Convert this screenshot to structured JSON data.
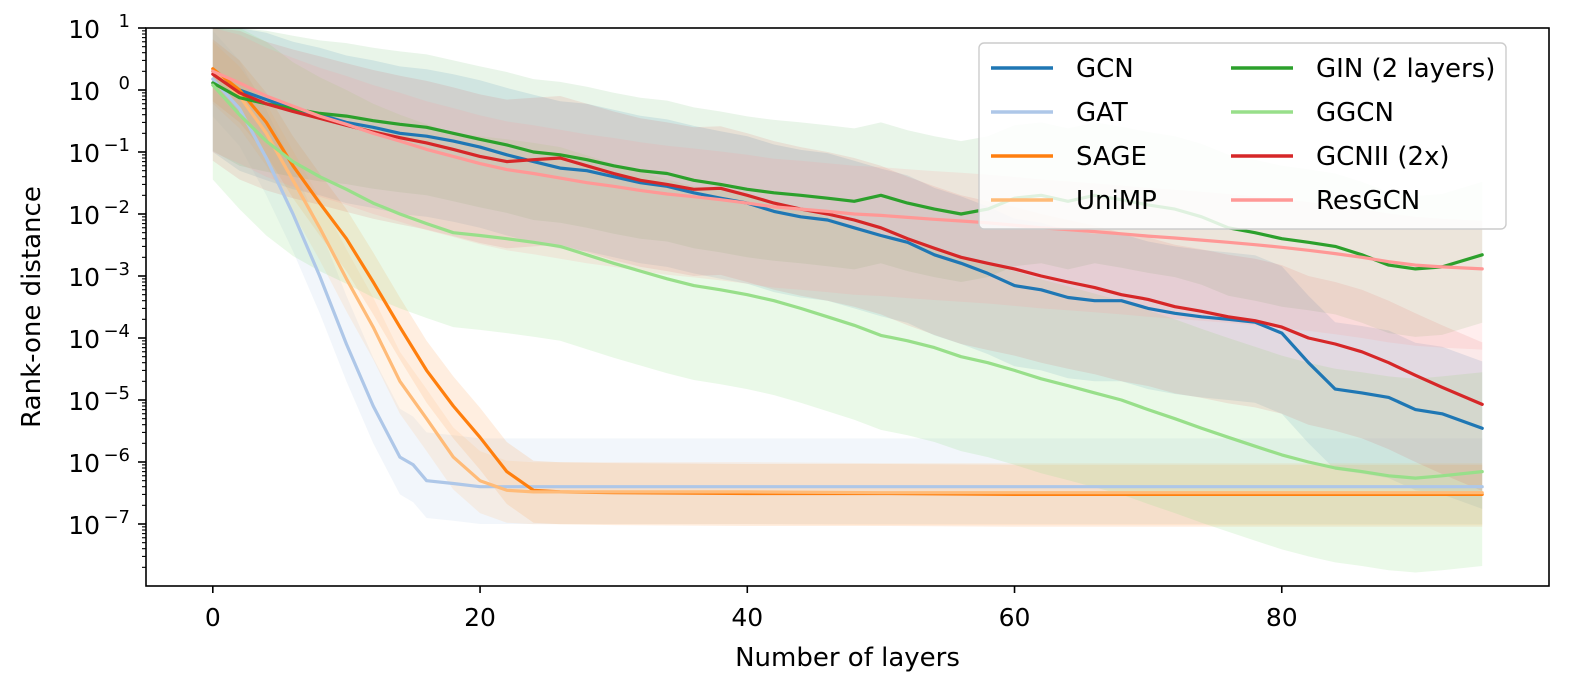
{
  "chart_data": {
    "type": "line",
    "xlabel": "Number of layers",
    "ylabel": "Rank-one distance",
    "yscale": "log",
    "xlim": [
      -5,
      100
    ],
    "ylim_exp": [
      -8.0,
      1.0
    ],
    "x_ticks": [
      0,
      20,
      40,
      60,
      80
    ],
    "y_ticks": [
      {
        "base": "10",
        "exp": "1",
        "value": 10
      },
      {
        "base": "10",
        "exp": "0",
        "value": 1
      },
      {
        "base": "10",
        "exp": "−1",
        "value": 0.1
      },
      {
        "base": "10",
        "exp": "−2",
        "value": 0.01
      },
      {
        "base": "10",
        "exp": "−3",
        "value": 0.001
      },
      {
        "base": "10",
        "exp": "−4",
        "value": 0.0001
      },
      {
        "base": "10",
        "exp": "−5",
        "value": 1e-05
      },
      {
        "base": "10",
        "exp": "−6",
        "value": 1e-06
      },
      {
        "base": "10",
        "exp": "−7",
        "value": 1e-07
      }
    ],
    "legend_position": "top-right",
    "legend_columns": 2,
    "bands": "shaded min–max range behind each series",
    "series": [
      {
        "name": "GCN",
        "color": "#1f77b4",
        "band_opacity": 0.12,
        "x": [
          0,
          2,
          4,
          6,
          8,
          10,
          12,
          14,
          16,
          18,
          20,
          22,
          24,
          26,
          28,
          30,
          32,
          34,
          36,
          38,
          40,
          42,
          44,
          46,
          48,
          50,
          52,
          54,
          56,
          58,
          60,
          62,
          64,
          66,
          68,
          70,
          72,
          74,
          76,
          78,
          80,
          82,
          84,
          86,
          88,
          90,
          92,
          95
        ],
        "y": [
          2.0,
          1.0,
          0.7,
          0.5,
          0.4,
          0.3,
          0.25,
          0.2,
          0.18,
          0.15,
          0.12,
          0.09,
          0.07,
          0.055,
          0.05,
          0.04,
          0.032,
          0.028,
          0.022,
          0.018,
          0.015,
          0.011,
          0.009,
          0.008,
          0.006,
          0.0045,
          0.0035,
          0.0022,
          0.0016,
          0.0011,
          0.0007,
          0.0006,
          0.00045,
          0.0004,
          0.0004,
          0.0003,
          0.00025,
          0.00022,
          0.0002,
          0.00018,
          0.00012,
          4e-05,
          1.5e-05,
          1.3e-05,
          1.1e-05,
          7e-06,
          6e-06,
          3.5e-06
        ],
        "band_low_factor": 0.05,
        "band_high_factor": 12
      },
      {
        "name": "GAT",
        "color": "#aec7e8",
        "band_opacity": 0.16,
        "x": [
          0,
          2,
          4,
          6,
          8,
          10,
          12,
          14,
          15,
          16,
          18,
          20,
          24,
          30,
          40,
          50,
          60,
          70,
          80,
          95
        ],
        "y": [
          1.5,
          0.5,
          0.08,
          0.01,
          0.001,
          8e-05,
          8e-06,
          1.2e-06,
          9e-07,
          5e-07,
          4.5e-07,
          4e-07,
          4e-07,
          4e-07,
          4e-07,
          4e-07,
          4e-07,
          4e-07,
          4e-07,
          4e-07
        ],
        "band_low_factor": 0.25,
        "band_high_factor": 6
      },
      {
        "name": "SAGE",
        "color": "#ff7f0e",
        "band_opacity": 0.13,
        "x": [
          0,
          2,
          4,
          6,
          8,
          10,
          12,
          14,
          16,
          18,
          20,
          22,
          24,
          26,
          30,
          40,
          50,
          60,
          70,
          80,
          95
        ],
        "y": [
          2.2,
          1.0,
          0.3,
          0.06,
          0.015,
          0.004,
          0.0008,
          0.00015,
          3e-05,
          8e-06,
          2.5e-06,
          7e-07,
          3.5e-07,
          3.3e-07,
          3.2e-07,
          3.1e-07,
          3.1e-07,
          3e-07,
          3e-07,
          3e-07,
          3e-07
        ],
        "band_low_factor": 0.3,
        "band_high_factor": 3
      },
      {
        "name": "UniMP",
        "color": "#ffbb78",
        "band_opacity": 0.16,
        "x": [
          0,
          2,
          4,
          6,
          8,
          10,
          12,
          14,
          16,
          18,
          20,
          22,
          24,
          30,
          40,
          50,
          60,
          70,
          80,
          95
        ],
        "y": [
          2.0,
          0.8,
          0.2,
          0.035,
          0.006,
          0.0009,
          0.00015,
          2e-05,
          5e-06,
          1.2e-06,
          5e-07,
          3.5e-07,
          3.3e-07,
          3.3e-07,
          3.3e-07,
          3.2e-07,
          3.2e-07,
          3.2e-07,
          3.2e-07,
          3.2e-07
        ],
        "band_low_factor": 0.3,
        "band_high_factor": 3
      },
      {
        "name": "GIN (2 layers)",
        "color": "#2ca02c",
        "band_opacity": 0.1,
        "x": [
          0,
          2,
          4,
          6,
          8,
          10,
          12,
          14,
          16,
          18,
          20,
          22,
          24,
          26,
          28,
          30,
          32,
          34,
          36,
          38,
          40,
          42,
          44,
          46,
          48,
          50,
          52,
          54,
          56,
          58,
          60,
          62,
          64,
          66,
          68,
          70,
          72,
          74,
          76,
          78,
          80,
          82,
          84,
          86,
          88,
          90,
          92,
          95
        ],
        "y": [
          1.3,
          0.75,
          0.6,
          0.5,
          0.42,
          0.38,
          0.32,
          0.28,
          0.25,
          0.2,
          0.16,
          0.13,
          0.1,
          0.09,
          0.075,
          0.06,
          0.05,
          0.045,
          0.035,
          0.03,
          0.025,
          0.022,
          0.02,
          0.018,
          0.016,
          0.02,
          0.015,
          0.012,
          0.01,
          0.012,
          0.018,
          0.02,
          0.016,
          0.02,
          0.017,
          0.014,
          0.012,
          0.009,
          0.006,
          0.005,
          0.004,
          0.0035,
          0.003,
          0.0022,
          0.0015,
          0.0013,
          0.0014,
          0.0022
        ],
        "band_low_factor": 0.08,
        "band_high_factor": 15
      },
      {
        "name": "GGCN",
        "color": "#98df8a",
        "band_opacity": 0.2,
        "x": [
          0,
          2,
          4,
          6,
          8,
          10,
          12,
          14,
          16,
          18,
          20,
          22,
          24,
          26,
          28,
          30,
          32,
          34,
          36,
          38,
          40,
          42,
          44,
          46,
          48,
          50,
          52,
          54,
          56,
          58,
          60,
          62,
          64,
          66,
          68,
          70,
          72,
          74,
          76,
          78,
          80,
          82,
          84,
          86,
          88,
          90,
          92,
          95
        ],
        "y": [
          1.2,
          0.4,
          0.15,
          0.07,
          0.04,
          0.025,
          0.015,
          0.01,
          0.007,
          0.005,
          0.0045,
          0.004,
          0.0035,
          0.003,
          0.0022,
          0.0016,
          0.0012,
          0.0009,
          0.0007,
          0.0006,
          0.0005,
          0.0004,
          0.0003,
          0.00022,
          0.00016,
          0.00011,
          9e-05,
          7e-05,
          5e-05,
          4e-05,
          3e-05,
          2.2e-05,
          1.7e-05,
          1.3e-05,
          1e-05,
          7e-06,
          5e-06,
          3.5e-06,
          2.5e-06,
          1.8e-06,
          1.3e-06,
          1e-06,
          8e-07,
          7e-07,
          6e-07,
          5.5e-07,
          6e-07,
          7e-07
        ],
        "band_low_factor": 0.03,
        "band_high_factor": 40
      },
      {
        "name": "GCNII (2x)",
        "color": "#d62728",
        "band_opacity": 0.1,
        "x": [
          0,
          2,
          4,
          6,
          8,
          10,
          12,
          14,
          16,
          18,
          20,
          22,
          24,
          26,
          28,
          30,
          32,
          34,
          36,
          38,
          40,
          42,
          44,
          46,
          48,
          50,
          52,
          54,
          56,
          58,
          60,
          62,
          64,
          66,
          68,
          70,
          72,
          74,
          76,
          78,
          80,
          82,
          84,
          86,
          88,
          90,
          92,
          95
        ],
        "y": [
          1.8,
          0.9,
          0.6,
          0.45,
          0.35,
          0.27,
          0.21,
          0.17,
          0.14,
          0.11,
          0.085,
          0.07,
          0.075,
          0.08,
          0.06,
          0.045,
          0.035,
          0.03,
          0.025,
          0.026,
          0.02,
          0.015,
          0.012,
          0.01,
          0.008,
          0.006,
          0.004,
          0.0028,
          0.002,
          0.0016,
          0.0013,
          0.001,
          0.0008,
          0.00065,
          0.0005,
          0.00042,
          0.00032,
          0.00027,
          0.00022,
          0.00019,
          0.00015,
          0.0001,
          8e-05,
          6e-05,
          4e-05,
          2.5e-05,
          1.6e-05,
          8.5e-06
        ],
        "band_low_factor": 0.04,
        "band_high_factor": 10
      },
      {
        "name": "ResGCN",
        "color": "#ff9896",
        "band_opacity": 0.16,
        "x": [
          0,
          2,
          4,
          6,
          8,
          10,
          12,
          14,
          16,
          18,
          20,
          22,
          24,
          26,
          28,
          30,
          32,
          34,
          36,
          38,
          40,
          42,
          44,
          46,
          48,
          50,
          52,
          54,
          56,
          58,
          60,
          62,
          64,
          66,
          68,
          70,
          72,
          74,
          76,
          78,
          80,
          82,
          84,
          86,
          88,
          90,
          92,
          95
        ],
        "y": [
          2.0,
          1.3,
          0.8,
          0.55,
          0.38,
          0.28,
          0.2,
          0.15,
          0.11,
          0.085,
          0.065,
          0.052,
          0.045,
          0.038,
          0.032,
          0.028,
          0.024,
          0.021,
          0.019,
          0.017,
          0.015,
          0.013,
          0.012,
          0.011,
          0.01,
          0.0095,
          0.0088,
          0.0082,
          0.0077,
          0.0072,
          0.0066,
          0.006,
          0.0056,
          0.0052,
          0.0048,
          0.0044,
          0.0041,
          0.0038,
          0.0035,
          0.0032,
          0.0029,
          0.0026,
          0.0023,
          0.002,
          0.0017,
          0.0015,
          0.0014,
          0.0013
        ],
        "band_low_factor": 0.05,
        "band_high_factor": 6
      }
    ]
  }
}
